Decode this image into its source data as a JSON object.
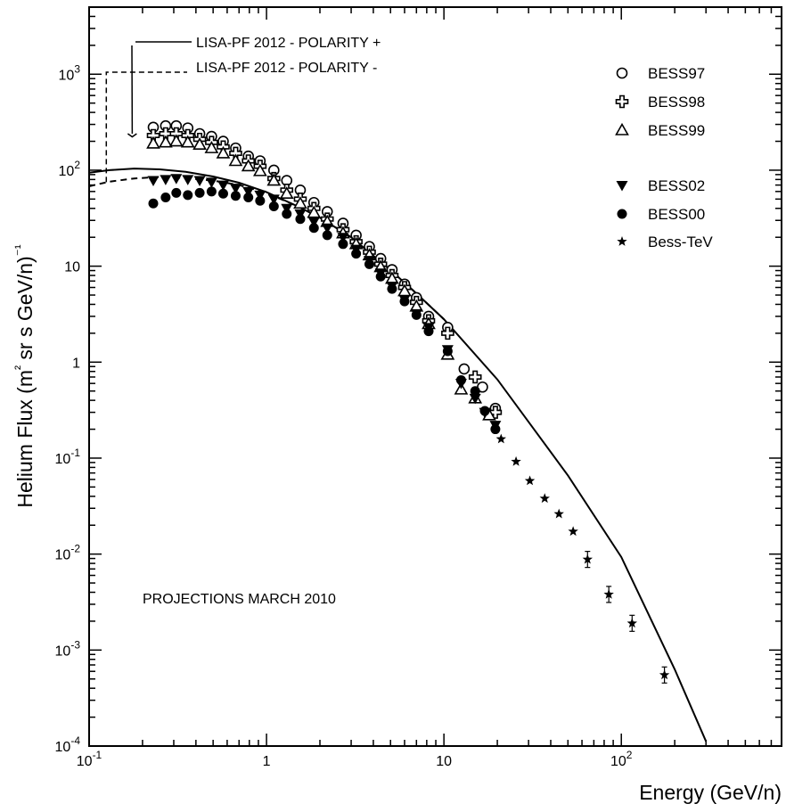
{
  "chart_data": {
    "type": "scatter",
    "title": "",
    "xlabel": "Energy (GeV/n)",
    "ylabel": "Helium Flux (m² sr s GeV/n)⁻¹",
    "xscale": "log",
    "yscale": "log",
    "xlim": [
      0.1,
      800
    ],
    "ylim": [
      0.0001,
      5000
    ],
    "x_tick_labels": [
      {
        "value": 0.1,
        "base": "10",
        "exp": "-1"
      },
      {
        "value": 1,
        "base": "1",
        "exp": ""
      },
      {
        "value": 10,
        "base": "10",
        "exp": ""
      },
      {
        "value": 100,
        "base": "10",
        "exp": "2"
      }
    ],
    "y_tick_labels": [
      {
        "value": 0.0001,
        "base": "10",
        "exp": "-4"
      },
      {
        "value": 0.001,
        "base": "10",
        "exp": "-3"
      },
      {
        "value": 0.01,
        "base": "10",
        "exp": "-2"
      },
      {
        "value": 0.1,
        "base": "10",
        "exp": "-1"
      },
      {
        "value": 1,
        "base": "1",
        "exp": ""
      },
      {
        "value": 10,
        "base": "10",
        "exp": ""
      },
      {
        "value": 100,
        "base": "10",
        "exp": "2"
      },
      {
        "value": 1000,
        "base": "10",
        "exp": "3"
      }
    ],
    "legend_placement": "top-right",
    "series": [
      {
        "name": "BESS97",
        "marker": "open-circle",
        "x": [
          0.23,
          0.27,
          0.31,
          0.36,
          0.42,
          0.49,
          0.57,
          0.67,
          0.79,
          0.92,
          1.1,
          1.3,
          1.55,
          1.85,
          2.2,
          2.7,
          3.2,
          3.8,
          4.4,
          5.1,
          6.0,
          7.0,
          8.2,
          10.5,
          13.0,
          16.5,
          19.5
        ],
        "y": [
          280,
          290,
          290,
          275,
          240,
          225,
          200,
          170,
          140,
          125,
          100,
          78,
          62,
          46,
          37,
          28,
          21,
          16,
          12,
          9.2,
          6.5,
          4.7,
          3.0,
          2.3,
          0.85,
          0.55,
          0.33
        ]
      },
      {
        "name": "BESS98",
        "marker": "open-cross",
        "x": [
          0.23,
          0.27,
          0.31,
          0.36,
          0.42,
          0.49,
          0.57,
          0.67,
          0.79,
          0.92,
          1.1,
          1.3,
          1.55,
          1.85,
          2.2,
          2.7,
          3.2,
          3.8,
          4.4,
          5.1,
          6.0,
          7.0,
          8.2,
          10.5,
          15.0,
          19.5
        ],
        "y": [
          230,
          240,
          240,
          230,
          210,
          195,
          175,
          150,
          125,
          110,
          82,
          62,
          50,
          40,
          31,
          24,
          18,
          14,
          10.5,
          8.0,
          6.0,
          4.2,
          2.7,
          2.0,
          0.7,
          0.3
        ]
      },
      {
        "name": "BESS99",
        "marker": "open-triangle",
        "x": [
          0.23,
          0.27,
          0.31,
          0.36,
          0.42,
          0.49,
          0.57,
          0.67,
          0.79,
          0.92,
          1.1,
          1.3,
          1.55,
          1.85,
          2.2,
          2.7,
          3.2,
          3.8,
          4.4,
          5.1,
          6.0,
          7.0,
          8.2,
          10.5,
          12.5,
          15.0,
          18.0
        ],
        "y": [
          190,
          195,
          200,
          195,
          185,
          170,
          150,
          125,
          110,
          98,
          78,
          57,
          45,
          36,
          29,
          22,
          17,
          13,
          9.8,
          7.4,
          5.5,
          3.8,
          2.5,
          1.2,
          0.52,
          0.42,
          0.28
        ]
      },
      {
        "name": "BESS02",
        "marker": "filled-triangle-down",
        "x": [
          0.23,
          0.27,
          0.31,
          0.36,
          0.42,
          0.49,
          0.57,
          0.67,
          0.79,
          0.92,
          1.1,
          1.3,
          1.55,
          1.85,
          2.2,
          2.7,
          3.2,
          3.8,
          4.4,
          5.1,
          6.0,
          7.0,
          8.2,
          10.5,
          12.5,
          15.0,
          17.0,
          19.5
        ],
        "y": [
          78,
          80,
          82,
          80,
          78,
          75,
          70,
          65,
          60,
          55,
          50,
          40,
          35,
          29,
          25,
          20,
          15,
          11.5,
          8.5,
          6.2,
          4.5,
          3.2,
          2.3,
          1.35,
          0.6,
          0.42,
          0.3,
          0.22
        ]
      },
      {
        "name": "BESS00",
        "marker": "filled-circle",
        "x": [
          0.23,
          0.27,
          0.31,
          0.36,
          0.42,
          0.49,
          0.57,
          0.67,
          0.79,
          0.92,
          1.1,
          1.3,
          1.55,
          1.85,
          2.2,
          2.7,
          3.2,
          3.8,
          4.4,
          5.1,
          6.0,
          7.0,
          8.2,
          10.5,
          12.5,
          15.0,
          17.0,
          19.5
        ],
        "y": [
          45,
          52,
          58,
          55,
          58,
          60,
          57,
          54,
          52,
          48,
          42,
          35,
          31,
          25,
          21,
          17,
          13.5,
          10.5,
          7.8,
          5.8,
          4.3,
          3.1,
          2.1,
          1.3,
          0.65,
          0.5,
          0.31,
          0.2
        ]
      },
      {
        "name": "Bess-TeV",
        "marker": "filled-star",
        "x": [
          21,
          25.5,
          30.5,
          37,
          44.5,
          53.5,
          64.5,
          85,
          115,
          175
        ],
        "y": [
          0.158,
          0.092,
          0.058,
          0.038,
          0.0262,
          0.0172,
          0.0088,
          0.0038,
          0.0019,
          0.00055
        ]
      }
    ],
    "curves": [
      {
        "name": "LISA-PF 2012 - POLARITY +",
        "style": "solid",
        "x": [
          0.1,
          0.13,
          0.18,
          0.25,
          0.35,
          0.5,
          0.7,
          1.0,
          1.5,
          2.0,
          3.0,
          5.0,
          7.0,
          10,
          20,
          50,
          100,
          200,
          300
        ],
        "y": [
          94,
          100,
          104,
          102,
          96,
          86,
          74,
          59,
          42,
          32,
          20,
          9.1,
          5.2,
          2.8,
          0.66,
          0.066,
          0.0093,
          0.00063,
          0.000112
        ]
      },
      {
        "name": "LISA-PF 2012 - POLARITY -",
        "style": "dashed",
        "x": [
          0.1,
          0.13,
          0.18,
          0.25,
          0.35,
          0.5,
          0.7,
          1.0,
          1.5,
          2.0,
          3.0,
          5.0,
          7.0,
          10
        ],
        "y": [
          68,
          76,
          82,
          85,
          83,
          78,
          70,
          58,
          42,
          32,
          20,
          9.1,
          5.2,
          2.8
        ]
      }
    ],
    "annotations": [
      {
        "text": "LISA-PF 2012 - POLARITY +",
        "type": "arrow-label",
        "target_x": 0.175,
        "target_y": 200
      },
      {
        "text": "LISA-PF 2012 - POLARITY -",
        "type": "dashed-leader",
        "target_x": 0.125,
        "target_y": 75
      },
      {
        "text": "PROJECTIONS MARCH 2010",
        "type": "note"
      }
    ]
  }
}
